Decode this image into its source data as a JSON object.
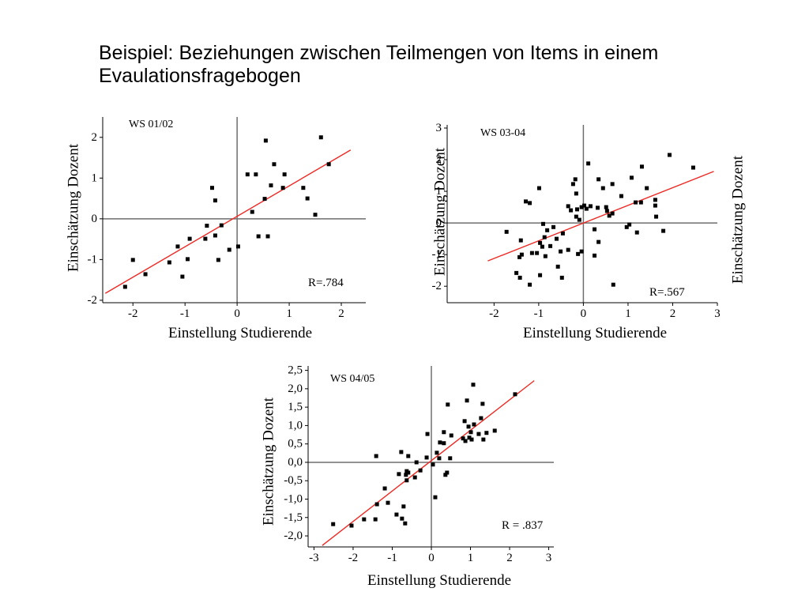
{
  "slide": {
    "title": "Beispiel: Beziehungen zwischen Teilmengen von Items in einem Evaulationsfragebogen"
  },
  "colors": {
    "points": "#000000",
    "fit_line": "#ee2a24",
    "axes": "#000000",
    "zero_lines": "#6e6e6e"
  },
  "chart_data": [
    {
      "type": "scatter",
      "title": "WS 01/02",
      "annotation": "R=.784",
      "xlabel": "Einstellung Studierende",
      "ylabel": "Einschätzung Dozent",
      "xlim": [
        -2.58,
        2.47
      ],
      "ylim": [
        -2.06,
        2.5
      ],
      "xticks": [
        -2,
        -1,
        0,
        1,
        2
      ],
      "xtick_labels": [
        "-2",
        "-1",
        "0",
        "1",
        "2"
      ],
      "yticks": [
        -2,
        -1,
        0,
        1,
        2
      ],
      "ytick_labels": [
        "-2",
        "-1",
        "0",
        "1",
        "2"
      ],
      "grid": false,
      "zero_lines": true,
      "legend": "none",
      "x": [
        -2.15,
        -2.0,
        -1.76,
        -1.3,
        -1.14,
        -1.05,
        -0.95,
        -0.91,
        -0.61,
        -0.58,
        -0.48,
        -0.42,
        -0.42,
        -0.36,
        -0.3,
        -0.15,
        0.02,
        0.2,
        0.29,
        0.36,
        0.41,
        0.53,
        0.55,
        0.59,
        0.65,
        0.71,
        0.88,
        0.91,
        1.27,
        1.35,
        1.5,
        1.61,
        1.76
      ],
      "y": [
        -1.67,
        -1.01,
        -1.36,
        -1.07,
        -0.68,
        -1.42,
        -0.99,
        -0.49,
        -0.49,
        -0.17,
        0.76,
        0.45,
        -0.41,
        -1.01,
        -0.16,
        -0.76,
        -0.68,
        1.09,
        0.17,
        1.09,
        -0.43,
        0.49,
        1.92,
        -0.43,
        0.82,
        1.34,
        0.76,
        1.09,
        0.76,
        0.5,
        0.1,
        2.0,
        1.34
      ],
      "fit_line": {
        "x": [
          -2.53,
          2.18
        ],
        "y": [
          -1.83,
          1.69
        ]
      }
    },
    {
      "type": "scatter",
      "title": "WS 03-04",
      "annotation": "R=.567",
      "xlabel": "Einstellung Studierende",
      "ylabel": "Einschätzung Dozent",
      "right_ylabel": "Einschätzung Dozent",
      "xlim": [
        -3.05,
        3.0
      ],
      "ylim": [
        -2.52,
        3.1
      ],
      "xticks": [
        -2,
        -1,
        0,
        1,
        2,
        3
      ],
      "xtick_labels": [
        "-2",
        "-1",
        "0",
        "1",
        "2",
        "3"
      ],
      "yticks": [
        -2,
        -1,
        0,
        1,
        2,
        3
      ],
      "ytick_labels": [
        "-2",
        "-1",
        "0",
        "1",
        "2",
        "3"
      ],
      "grid": false,
      "zero_lines": true,
      "legend": "none",
      "x": [
        -1.72,
        -1.5,
        -1.43,
        -1.42,
        -1.4,
        -1.38,
        -1.29,
        -1.2,
        -1.2,
        -1.15,
        -1.04,
        -0.99,
        -0.97,
        -0.97,
        -0.92,
        -0.9,
        -0.87,
        -0.85,
        -0.81,
        -0.74,
        -0.67,
        -0.6,
        -0.57,
        -0.51,
        -0.48,
        -0.46,
        -0.34,
        -0.34,
        -0.28,
        -0.23,
        -0.18,
        -0.16,
        -0.16,
        -0.14,
        -0.12,
        -0.09,
        -0.04,
        -0.04,
        0.02,
        0.07,
        0.11,
        0.16,
        0.25,
        0.25,
        0.32,
        0.34,
        0.34,
        0.44,
        0.51,
        0.53,
        0.58,
        0.65,
        0.65,
        0.67,
        0.85,
        0.97,
        1.03,
        1.08,
        1.17,
        1.2,
        1.29,
        1.31,
        1.42,
        1.61,
        1.61,
        1.63,
        1.79,
        1.93,
        2.46
      ],
      "y": [
        -0.28,
        -1.58,
        -1.08,
        -1.73,
        -0.55,
        -1.0,
        0.68,
        0.63,
        -1.95,
        -0.95,
        -0.95,
        1.1,
        -1.65,
        -0.63,
        -0.75,
        -0.03,
        -0.45,
        -1.05,
        -0.23,
        -0.73,
        -0.13,
        -0.5,
        -1.38,
        -0.9,
        -1.73,
        -0.33,
        0.53,
        -0.85,
        0.4,
        1.23,
        1.38,
        0.93,
        0.2,
        0.43,
        -0.98,
        0.1,
        0.5,
        -0.9,
        0.55,
        0.45,
        1.88,
        0.53,
        -1.03,
        -0.2,
        0.48,
        1.38,
        -0.6,
        1.1,
        0.5,
        0.38,
        0.23,
        1.23,
        0.3,
        -1.95,
        0.85,
        -0.13,
        -0.05,
        1.43,
        0.65,
        -0.3,
        0.65,
        1.78,
        1.1,
        0.73,
        0.55,
        0.2,
        -0.25,
        2.15,
        1.75
      ],
      "fit_line": {
        "x": [
          -2.14,
          2.92
        ],
        "y": [
          -1.2,
          1.63
        ]
      }
    },
    {
      "type": "scatter",
      "title": "WS 04/05",
      "annotation": "R = .837",
      "xlabel": "Einstellung Studierende",
      "ylabel": "Einschätzung Dozent",
      "xlim": [
        -3.15,
        3.13
      ],
      "ylim": [
        -2.3,
        2.62
      ],
      "xticks": [
        -3,
        -2,
        -1,
        0,
        1,
        2,
        3
      ],
      "xtick_labels": [
        "-3",
        "-2",
        "-1",
        "0",
        "1",
        "2",
        "3"
      ],
      "yticks": [
        -2,
        -1.5,
        -1,
        -0.5,
        0,
        0.5,
        1,
        1.5,
        2,
        2.5
      ],
      "ytick_labels": [
        "-2,0",
        "-1,5",
        "-1,0",
        "-0,5",
        "0,0",
        "0,5",
        "1,0",
        "1,5",
        "2,0",
        "2,5"
      ],
      "grid": false,
      "zero_lines": true,
      "legend": "none",
      "x": [
        -2.51,
        -2.04,
        -1.72,
        -1.43,
        -1.41,
        -1.39,
        -1.19,
        -1.11,
        -0.89,
        -0.83,
        -0.77,
        -0.75,
        -0.71,
        -0.67,
        -0.65,
        -0.63,
        -0.63,
        -0.59,
        -0.59,
        -0.42,
        -0.38,
        -0.28,
        -0.12,
        -0.1,
        0.04,
        0.1,
        0.14,
        0.2,
        0.22,
        0.32,
        0.32,
        0.36,
        0.4,
        0.42,
        0.48,
        0.51,
        0.81,
        0.85,
        0.87,
        0.91,
        0.95,
        0.97,
        1.01,
        1.03,
        1.07,
        1.09,
        1.21,
        1.27,
        1.31,
        1.33,
        1.41,
        1.62,
        2.14
      ],
      "y": [
        -1.68,
        -1.72,
        -1.55,
        -1.55,
        0.17,
        -1.14,
        -0.71,
        -1.1,
        -1.42,
        -0.32,
        0.28,
        -1.53,
        -1.2,
        -1.66,
        -0.34,
        -0.24,
        -0.49,
        0.17,
        -0.28,
        -0.41,
        0.0,
        -0.22,
        0.13,
        0.77,
        -0.06,
        -0.95,
        0.26,
        0.11,
        0.54,
        0.82,
        0.52,
        -0.34,
        -0.28,
        1.57,
        0.11,
        0.73,
        0.65,
        1.12,
        0.58,
        1.68,
        0.97,
        0.67,
        0.82,
        0.62,
        2.11,
        1.03,
        0.77,
        1.2,
        1.59,
        0.62,
        0.8,
        0.86,
        1.85
      ],
      "fit_line": {
        "x": [
          -2.79,
          2.63
        ],
        "y": [
          -2.26,
          2.22
        ]
      }
    }
  ]
}
